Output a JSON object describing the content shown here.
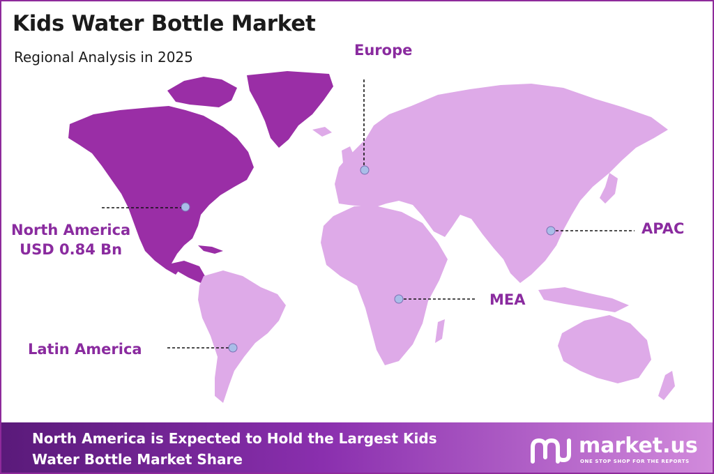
{
  "header": {
    "title": "Kids Water Bottle Market",
    "subtitle": "Regional Analysis in 2025"
  },
  "regions": {
    "europe": "Europe",
    "north_america_name": "North America",
    "north_america_value": "USD 0.84 Bn",
    "apac": "APAC",
    "mea": "MEA",
    "latin_america": "Latin America"
  },
  "footer": {
    "line1": "North America is Expected to Hold the Largest Kids",
    "line2": "Water Bottle Market Share"
  },
  "logo": {
    "name": "market.us",
    "tagline": "ONE STOP SHOP FOR THE REPORTS"
  },
  "colors": {
    "highlight_region": "#9a2ea6",
    "other_regions": "#deaae8",
    "marker": "#a9bde8",
    "label_text": "#8a2b9f"
  }
}
